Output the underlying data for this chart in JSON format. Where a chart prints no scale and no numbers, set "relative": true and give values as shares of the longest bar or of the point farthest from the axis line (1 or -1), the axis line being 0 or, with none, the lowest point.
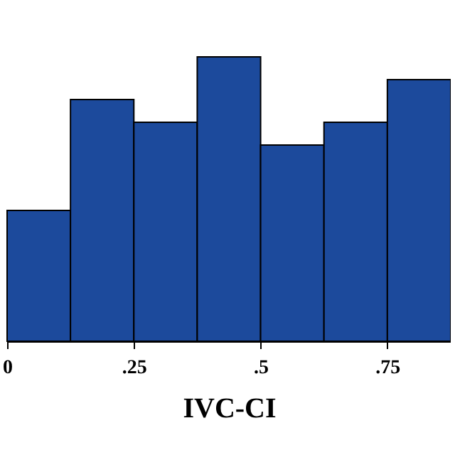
{
  "chart_data": {
    "type": "bar",
    "xlabel": "IVC-CI",
    "relative": true,
    "color": "#1c4a9c",
    "x": [
      0.0625,
      0.1875,
      0.3125,
      0.4375,
      0.5625,
      0.6875,
      0.8125
    ],
    "values": [
      0.46,
      0.85,
      0.77,
      1,
      0.69,
      0.77,
      0.92
    ],
    "xlim": [
      0,
      0.875
    ],
    "xticks": [
      {
        "value": 0,
        "label": "0"
      },
      {
        "value": 0.25,
        "label": ".25"
      },
      {
        "value": 0.5,
        "label": ".5"
      },
      {
        "value": 0.75,
        "label": ".75"
      }
    ],
    "grid": false
  }
}
